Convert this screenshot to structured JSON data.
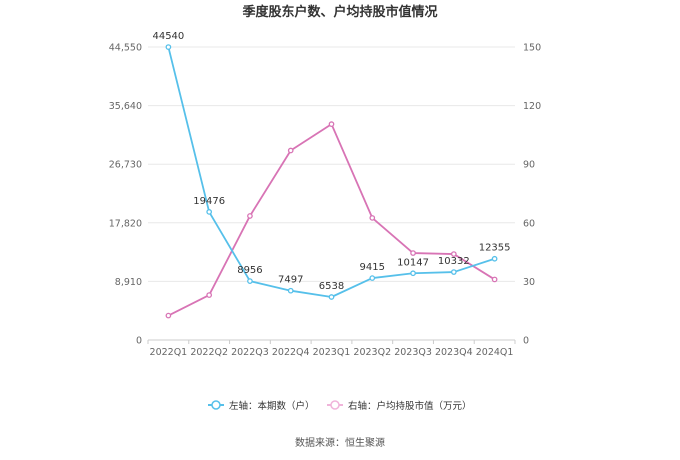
{
  "title": "季度股东户数、户均持股市值情况",
  "source": "数据来源：恒生聚源",
  "chart_data": {
    "type": "line",
    "categories": [
      "2022Q1",
      "2022Q2",
      "2022Q3",
      "2022Q4",
      "2023Q1",
      "2023Q2",
      "2023Q3",
      "2023Q4",
      "2024Q1"
    ],
    "y_left": {
      "ticks": [
        "0",
        "8,910",
        "17,820",
        "26,730",
        "35,640",
        "44,550"
      ],
      "ylim": [
        0,
        44550
      ]
    },
    "y_right": {
      "ticks": [
        "0",
        "30",
        "60",
        "90",
        "120",
        "150"
      ],
      "ylim": [
        0,
        150
      ]
    },
    "series": [
      {
        "name": "左轴：本期数（户）",
        "axis": "left",
        "color": "#56c0ea",
        "values": [
          44540,
          19476,
          8956,
          7497,
          6538,
          9415,
          10147,
          10332,
          12355
        ],
        "labels": [
          "44540",
          "19476",
          "8956",
          "7497",
          "6538",
          "9415",
          "10147",
          "10332",
          "12355"
        ]
      },
      {
        "name": "右轴：户均持股市值（万元）",
        "axis": "right",
        "color": "#d874b5",
        "values": [
          12.5,
          23,
          63.5,
          97,
          110.5,
          62.5,
          44.5,
          44,
          31
        ]
      }
    ],
    "grid": true,
    "legend": "bottom-center"
  }
}
